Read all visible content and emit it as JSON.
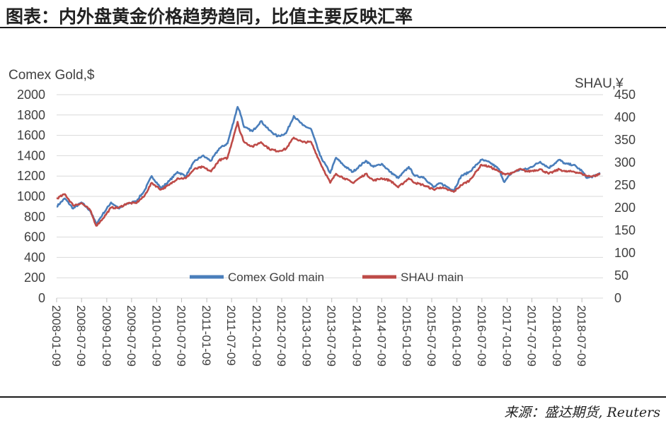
{
  "header": {
    "title": "图表：内外盘黄金价格趋势趋同，比值主要反映汇率"
  },
  "footer": {
    "source": "来源：盛达期货, Reuters"
  },
  "chart_data": {
    "type": "line",
    "y_left_label": "Comex Gold,$",
    "y_right_label": "SHAU,¥",
    "y_left_ticks": [
      0,
      200,
      400,
      600,
      800,
      1000,
      1200,
      1400,
      1600,
      1800,
      2000
    ],
    "y_right_ticks": [
      0,
      50,
      100,
      150,
      200,
      250,
      300,
      350,
      400,
      450
    ],
    "ylim_left": [
      0,
      2000
    ],
    "ylim_right": [
      0,
      450
    ],
    "x_ticks": [
      "2008-01-09",
      "2008-07-09",
      "2009-01-09",
      "2009-07-09",
      "2010-01-09",
      "2010-07-09",
      "2011-01-09",
      "2011-07-09",
      "2012-01-09",
      "2012-07-09",
      "2013-01-09",
      "2013-07-09",
      "2014-01-09",
      "2014-07-09",
      "2015-01-09",
      "2015-07-09",
      "2016-01-09",
      "2016-07-09",
      "2017-01-09",
      "2017-07-09",
      "2018-01-09",
      "2018-07-09"
    ],
    "legend_position": "bottom-center",
    "grid": true,
    "series": [
      {
        "name": "Comex Gold main",
        "axis": "left",
        "color": "#4a7ebb",
        "x": [
          "2008-01-09",
          "2008-03-09",
          "2008-05-09",
          "2008-07-09",
          "2008-09-09",
          "2008-10-24",
          "2008-12-09",
          "2009-02-09",
          "2009-04-09",
          "2009-06-09",
          "2009-08-09",
          "2009-10-09",
          "2009-12-03",
          "2010-02-09",
          "2010-04-09",
          "2010-06-09",
          "2010-08-09",
          "2010-10-09",
          "2010-12-09",
          "2011-02-09",
          "2011-04-09",
          "2011-06-09",
          "2011-08-22",
          "2011-09-06",
          "2011-10-09",
          "2011-12-09",
          "2012-02-09",
          "2012-04-09",
          "2012-06-09",
          "2012-08-09",
          "2012-10-05",
          "2012-12-09",
          "2013-02-09",
          "2013-04-15",
          "2013-06-28",
          "2013-08-09",
          "2013-10-09",
          "2013-12-09",
          "2014-03-15",
          "2014-05-09",
          "2014-07-09",
          "2014-09-09",
          "2014-11-07",
          "2015-01-22",
          "2015-03-09",
          "2015-05-09",
          "2015-07-24",
          "2015-09-09",
          "2015-12-17",
          "2016-02-09",
          "2016-04-09",
          "2016-07-06",
          "2016-09-09",
          "2016-11-09",
          "2016-12-20",
          "2017-02-09",
          "2017-04-09",
          "2017-06-09",
          "2017-09-08",
          "2017-11-09",
          "2018-01-25",
          "2018-03-09",
          "2018-05-09",
          "2018-07-09",
          "2018-08-16",
          "2018-10-09",
          "2018-11-20"
        ],
        "y": [
          900,
          980,
          880,
          940,
          860,
          730,
          820,
          940,
          880,
          930,
          950,
          1050,
          1200,
          1080,
          1150,
          1240,
          1200,
          1340,
          1400,
          1350,
          1470,
          1520,
          1880,
          1840,
          1680,
          1640,
          1740,
          1650,
          1590,
          1620,
          1790,
          1700,
          1660,
          1400,
          1230,
          1380,
          1300,
          1240,
          1350,
          1290,
          1320,
          1240,
          1180,
          1290,
          1200,
          1190,
          1090,
          1130,
          1060,
          1200,
          1240,
          1360,
          1330,
          1270,
          1140,
          1230,
          1260,
          1270,
          1340,
          1280,
          1360,
          1320,
          1310,
          1250,
          1180,
          1200,
          1230
        ]
      },
      {
        "name": "SHAU main",
        "axis": "right",
        "color": "#be4b48",
        "x": [
          "2008-01-09",
          "2008-03-09",
          "2008-05-09",
          "2008-07-09",
          "2008-09-09",
          "2008-10-24",
          "2008-12-09",
          "2009-02-09",
          "2009-04-09",
          "2009-06-09",
          "2009-08-09",
          "2009-10-09",
          "2009-12-03",
          "2010-02-09",
          "2010-04-09",
          "2010-06-09",
          "2010-08-09",
          "2010-10-09",
          "2010-12-09",
          "2011-02-09",
          "2011-04-09",
          "2011-06-09",
          "2011-08-22",
          "2011-09-06",
          "2011-10-09",
          "2011-12-09",
          "2012-02-09",
          "2012-04-09",
          "2012-06-09",
          "2012-08-09",
          "2012-10-05",
          "2012-12-09",
          "2013-02-09",
          "2013-04-15",
          "2013-06-28",
          "2013-08-09",
          "2013-10-09",
          "2013-12-09",
          "2014-03-15",
          "2014-05-09",
          "2014-07-09",
          "2014-09-09",
          "2014-11-07",
          "2015-01-22",
          "2015-03-09",
          "2015-05-09",
          "2015-07-24",
          "2015-09-09",
          "2015-12-17",
          "2016-02-09",
          "2016-04-09",
          "2016-07-06",
          "2016-09-09",
          "2016-11-09",
          "2016-12-20",
          "2017-02-09",
          "2017-04-09",
          "2017-06-09",
          "2017-09-08",
          "2017-11-09",
          "2018-01-25",
          "2018-03-09",
          "2018-05-09",
          "2018-07-09",
          "2018-08-16",
          "2018-10-09",
          "2018-11-20"
        ],
        "y": [
          220,
          230,
          205,
          210,
          195,
          160,
          175,
          200,
          200,
          210,
          210,
          225,
          255,
          240,
          250,
          265,
          265,
          285,
          290,
          280,
          305,
          310,
          390,
          370,
          345,
          335,
          345,
          330,
          325,
          330,
          355,
          345,
          345,
          300,
          255,
          275,
          265,
          255,
          275,
          260,
          265,
          260,
          245,
          265,
          255,
          250,
          240,
          245,
          235,
          250,
          260,
          295,
          290,
          280,
          275,
          275,
          285,
          280,
          285,
          275,
          285,
          280,
          280,
          275,
          270,
          270,
          275
        ]
      }
    ]
  }
}
